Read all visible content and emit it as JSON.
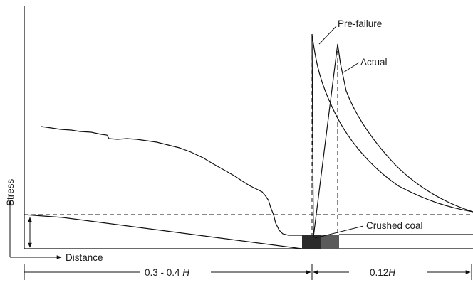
{
  "labels": {
    "stress": "Stress",
    "distance": "Distance",
    "pre_failure": "Pre-failure",
    "actual": "Actual",
    "crushed_coal": "Crushed coal",
    "range_left_prefix": "0.3 - 0.4 ",
    "range_left_suffix": "H",
    "range_right_prefix": "0.12",
    "range_right_suffix": "H"
  },
  "colors": {
    "line": "#111111",
    "coal_dark": "#2b2b2b",
    "coal_light": "#5a5a5a"
  }
}
